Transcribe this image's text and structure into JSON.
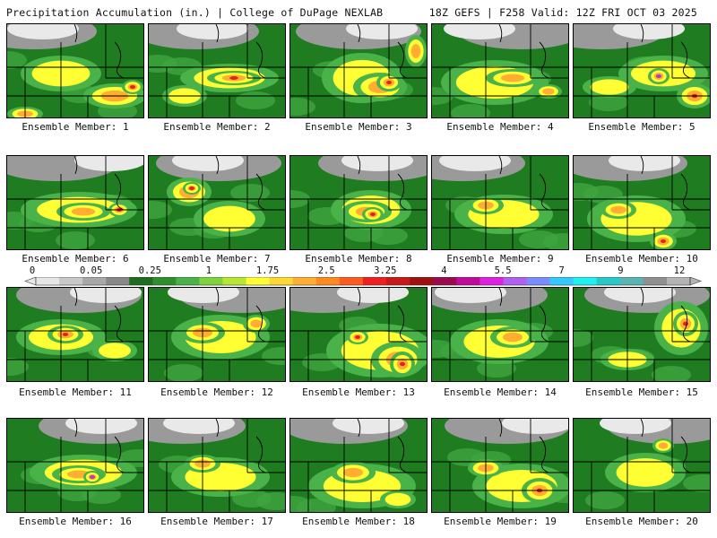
{
  "header": {
    "title": "Precipitation Accumulation (in.) | College of DuPage NEXLAB",
    "info": "18Z GEFS | F258 Valid: 12Z FRI OCT 03 2025"
  },
  "colorbar": {
    "tick_labels": [
      "0",
      "0.05",
      "0.25",
      "1",
      "1.75",
      "2.5",
      "3.25",
      "4",
      "5.5",
      "7",
      "9",
      "12"
    ],
    "colors": [
      "#e6e6e6",
      "#c8c8c8",
      "#a8a8a8",
      "#888888",
      "#1f6b1f",
      "#2f8f2f",
      "#49b349",
      "#7fd33f",
      "#b8e635",
      "#ffff33",
      "#ffd733",
      "#ffad33",
      "#ff8a1f",
      "#ff5a1f",
      "#f02020",
      "#c81818",
      "#a01010",
      "#9c0a4e",
      "#c00a9c",
      "#e020e0",
      "#b060f0",
      "#7a8cff",
      "#33c8ff",
      "#20f0f0",
      "#28c8c8",
      "#5ab4b4",
      "#909090",
      "#b4b4b4"
    ]
  },
  "panels": [
    {
      "label": "Ensemble Member: 1"
    },
    {
      "label": "Ensemble Member: 2"
    },
    {
      "label": "Ensemble Member: 3"
    },
    {
      "label": "Ensemble Member: 4"
    },
    {
      "label": "Ensemble Member: 5"
    },
    {
      "label": "Ensemble Member: 6"
    },
    {
      "label": "Ensemble Member: 7"
    },
    {
      "label": "Ensemble Member: 8"
    },
    {
      "label": "Ensemble Member: 9"
    },
    {
      "label": "Ensemble Member: 10"
    },
    {
      "label": "Ensemble Member: 11"
    },
    {
      "label": "Ensemble Member: 12"
    },
    {
      "label": "Ensemble Member: 13"
    },
    {
      "label": "Ensemble Member: 14"
    },
    {
      "label": "Ensemble Member: 15"
    },
    {
      "label": "Ensemble Member: 16"
    },
    {
      "label": "Ensemble Member: 17"
    },
    {
      "label": "Ensemble Member: 18"
    },
    {
      "label": "Ensemble Member: 19"
    },
    {
      "label": "Ensemble Member: 20"
    }
  ]
}
